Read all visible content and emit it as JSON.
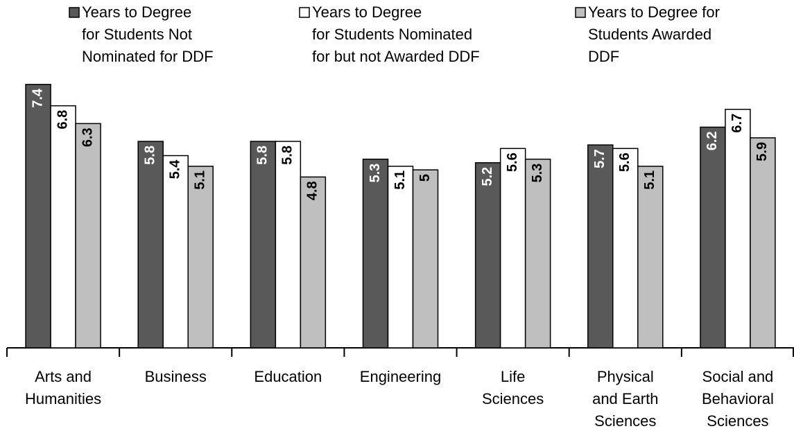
{
  "chart_data": {
    "type": "bar",
    "categories": [
      "Arts and\nHumanities",
      "Business",
      "Education",
      "Engineering",
      "Life\nSciences",
      "Physical\nand Earth\nSciences",
      "Social and\nBehavioral\nSciences"
    ],
    "series": [
      {
        "name": "Years to Degree\nfor Students Not\nNominated for DDF",
        "color": "#595959",
        "values": [
          7.4,
          5.8,
          5.8,
          5.3,
          5.2,
          5.7,
          6.2
        ]
      },
      {
        "name": "Years to Degree\nfor Students Nominated\nfor but not Awarded DDF",
        "color": "#ffffff",
        "values": [
          6.8,
          5.4,
          5.8,
          5.1,
          5.6,
          5.6,
          6.7
        ]
      },
      {
        "name": "Years to Degree for\nStudents Awarded\nDDF",
        "color": "#bfbfbf",
        "values": [
          6.3,
          5.1,
          4.8,
          5,
          5.3,
          5.1,
          5.9
        ]
      }
    ],
    "ylim": [
      0,
      8
    ]
  }
}
